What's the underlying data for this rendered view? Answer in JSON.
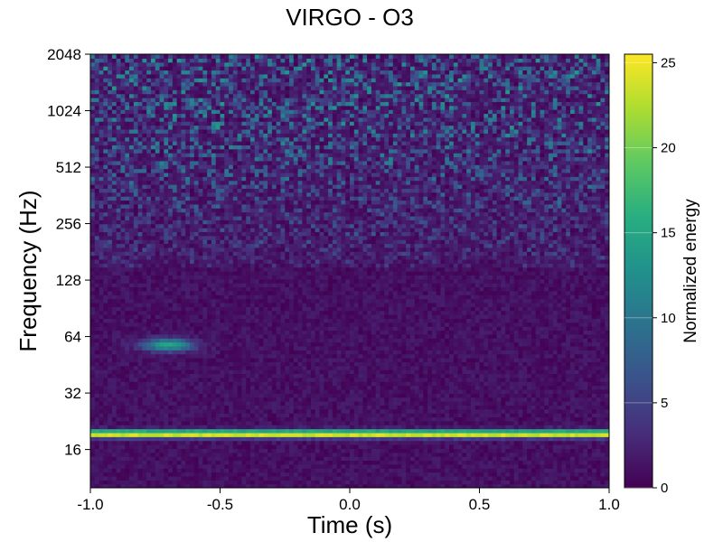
{
  "chart_data": {
    "type": "heatmap",
    "title": "VIRGO - O3",
    "xlabel": "Time (s)",
    "ylabel": "Frequency (Hz)",
    "xlim": [
      -1.0,
      1.0
    ],
    "ylim": [
      10,
      2048
    ],
    "yscale": "log2",
    "x_ticks": [
      -1.0,
      -0.5,
      0.0,
      0.5,
      1.0
    ],
    "x_tick_labels": [
      "-1.0",
      "-0.5",
      "0.0",
      "0.5",
      "1.0"
    ],
    "y_ticks": [
      16,
      32,
      64,
      128,
      256,
      512,
      1024,
      2048
    ],
    "y_tick_labels": [
      "16",
      "32",
      "64",
      "128",
      "256",
      "512",
      "1024",
      "2048"
    ],
    "colormap": "viridis",
    "colorbar": {
      "label": "Normalized energy",
      "range": [
        0,
        25.5
      ],
      "ticks": [
        0,
        5,
        10,
        15,
        20,
        25
      ],
      "tick_labels": [
        "0",
        "5",
        "10",
        "15",
        "20",
        "25"
      ],
      "colors": [
        "#440154",
        "#472d7b",
        "#3b528b",
        "#2c728e",
        "#21918c",
        "#28ae80",
        "#5ec962",
        "#addc30",
        "#fde725"
      ]
    },
    "features": [
      {
        "kind": "line",
        "frequency_hz": 19.5,
        "time_range": [
          -1.0,
          1.0
        ],
        "energy": 25
      },
      {
        "kind": "blob",
        "time_s": -0.7,
        "frequency_hz": 58,
        "energy": 14
      },
      {
        "kind": "noise",
        "frequency_range": [
          150,
          2048
        ],
        "energy_range": [
          0,
          12
        ]
      }
    ]
  }
}
